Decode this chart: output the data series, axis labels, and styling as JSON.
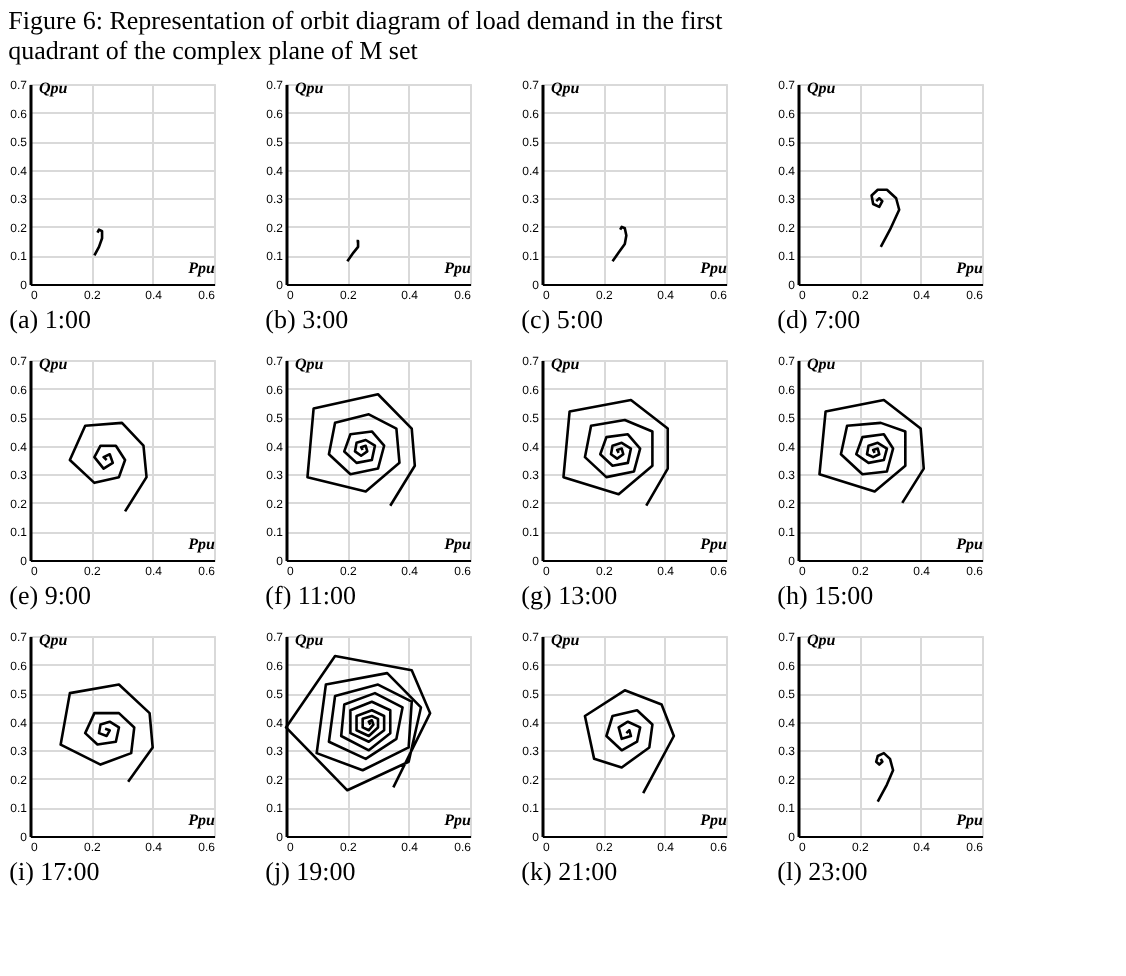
{
  "chart_data": [
    {
      "type": "line",
      "title": "(a) 1:00",
      "annotations": [
        "Figure 6: Representation of orbit diagram of load demand in the first quadrant of the complex plane of M set"
      ],
      "xlabel": "Ppu",
      "ylabel": "Qpu",
      "xlim": [
        0,
        0.6
      ],
      "ylim": [
        0,
        0.7
      ],
      "xticks": [
        0,
        0.2,
        0.4,
        0.6
      ],
      "yticks": [
        0,
        0.1,
        0.2,
        0.3,
        0.4,
        0.5,
        0.6,
        0.7
      ],
      "grid": true,
      "x": [
        0.21,
        0.225,
        0.235,
        0.235,
        0.225,
        0.22
      ],
      "series": [
        {
          "color": "#000000",
          "values": [
            0.1,
            0.13,
            0.16,
            0.185,
            0.19,
            0.18
          ]
        }
      ]
    },
    {
      "type": "line",
      "title": "(b) 3:00",
      "xlabel": "Ppu",
      "ylabel": "Qpu",
      "xlim": [
        0,
        0.6
      ],
      "ylim": [
        0,
        0.7
      ],
      "xticks": [
        0,
        0.2,
        0.4,
        0.6
      ],
      "yticks": [
        0,
        0.1,
        0.2,
        0.3,
        0.4,
        0.5,
        0.6,
        0.7
      ],
      "grid": true,
      "x": [
        0.2,
        0.22,
        0.235,
        0.235,
        0.23
      ],
      "series": [
        {
          "color": "#000000",
          "values": [
            0.08,
            0.11,
            0.13,
            0.15,
            0.15
          ]
        }
      ]
    },
    {
      "type": "line",
      "title": "(c) 5:00",
      "xlabel": "Ppu",
      "ylabel": "Qpu",
      "xlim": [
        0,
        0.6
      ],
      "ylim": [
        0,
        0.7
      ],
      "xticks": [
        0,
        0.2,
        0.4,
        0.6
      ],
      "yticks": [
        0,
        0.1,
        0.2,
        0.3,
        0.4,
        0.5,
        0.6,
        0.7
      ],
      "grid": true,
      "x": [
        0.23,
        0.25,
        0.27,
        0.275,
        0.27,
        0.26,
        0.255
      ],
      "series": [
        {
          "color": "#000000",
          "values": [
            0.08,
            0.11,
            0.14,
            0.17,
            0.195,
            0.2,
            0.19
          ]
        }
      ]
    },
    {
      "type": "line",
      "title": "(d) 7:00",
      "xlabel": "Ppu",
      "ylabel": "Qpu",
      "xlim": [
        0,
        0.6
      ],
      "ylim": [
        0,
        0.7
      ],
      "xticks": [
        0,
        0.2,
        0.4,
        0.6
      ],
      "yticks": [
        0,
        0.1,
        0.2,
        0.3,
        0.4,
        0.5,
        0.6,
        0.7
      ],
      "grid": true,
      "x": [
        0.27,
        0.3,
        0.33,
        0.32,
        0.29,
        0.26,
        0.24,
        0.245,
        0.265,
        0.275,
        0.265,
        0.255
      ],
      "series": [
        {
          "color": "#000000",
          "values": [
            0.13,
            0.19,
            0.26,
            0.3,
            0.33,
            0.33,
            0.31,
            0.28,
            0.27,
            0.29,
            0.3,
            0.29
          ]
        }
      ]
    },
    {
      "type": "line",
      "title": "(e) 9:00",
      "xlabel": "Ppu",
      "ylabel": "Qpu",
      "xlim": [
        0,
        0.6
      ],
      "ylim": [
        0,
        0.7
      ],
      "xticks": [
        0,
        0.2,
        0.4,
        0.6
      ],
      "yticks": [
        0,
        0.1,
        0.2,
        0.3,
        0.4,
        0.5,
        0.6,
        0.7
      ],
      "grid": true,
      "x": [
        0.31,
        0.38,
        0.37,
        0.3,
        0.18,
        0.13,
        0.21,
        0.29,
        0.31,
        0.28,
        0.23,
        0.21,
        0.24,
        0.27,
        0.26,
        0.24,
        0.25
      ],
      "series": [
        {
          "color": "#000000",
          "values": [
            0.17,
            0.29,
            0.4,
            0.48,
            0.47,
            0.35,
            0.27,
            0.29,
            0.35,
            0.4,
            0.4,
            0.36,
            0.32,
            0.34,
            0.37,
            0.36,
            0.35
          ]
        }
      ]
    },
    {
      "type": "line",
      "title": "(f) 11:00",
      "xlabel": "Ppu",
      "ylabel": "Qpu",
      "xlim": [
        0,
        0.6
      ],
      "ylim": [
        0,
        0.7
      ],
      "xticks": [
        0,
        0.2,
        0.4,
        0.6
      ],
      "yticks": [
        0,
        0.1,
        0.2,
        0.3,
        0.4,
        0.5,
        0.6,
        0.7
      ],
      "grid": true,
      "x": [
        0.34,
        0.42,
        0.41,
        0.3,
        0.09,
        0.07,
        0.26,
        0.37,
        0.36,
        0.27,
        0.16,
        0.14,
        0.21,
        0.3,
        0.32,
        0.28,
        0.21,
        0.19,
        0.23,
        0.28,
        0.29,
        0.26,
        0.23,
        0.225,
        0.245,
        0.265,
        0.26,
        0.245,
        0.25
      ],
      "series": [
        {
          "color": "#000000",
          "values": [
            0.19,
            0.33,
            0.46,
            0.58,
            0.53,
            0.29,
            0.24,
            0.34,
            0.46,
            0.51,
            0.48,
            0.37,
            0.3,
            0.32,
            0.4,
            0.45,
            0.44,
            0.38,
            0.34,
            0.35,
            0.4,
            0.42,
            0.41,
            0.38,
            0.365,
            0.38,
            0.4,
            0.395,
            0.385
          ]
        }
      ]
    },
    {
      "type": "line",
      "title": "(g) 13:00",
      "xlabel": "Ppu",
      "ylabel": "Qpu",
      "xlim": [
        0,
        0.6
      ],
      "ylim": [
        0,
        0.7
      ],
      "xticks": [
        0,
        0.2,
        0.4,
        0.6
      ],
      "yticks": [
        0,
        0.1,
        0.2,
        0.3,
        0.4,
        0.5,
        0.6,
        0.7
      ],
      "grid": true,
      "x": [
        0.34,
        0.41,
        0.41,
        0.29,
        0.09,
        0.07,
        0.25,
        0.36,
        0.36,
        0.27,
        0.16,
        0.14,
        0.21,
        0.3,
        0.32,
        0.28,
        0.21,
        0.19,
        0.23,
        0.28,
        0.29,
        0.26,
        0.23,
        0.225,
        0.245,
        0.265,
        0.26,
        0.245,
        0.25
      ],
      "series": [
        {
          "color": "#000000",
          "values": [
            0.19,
            0.32,
            0.46,
            0.56,
            0.52,
            0.29,
            0.23,
            0.33,
            0.45,
            0.49,
            0.47,
            0.36,
            0.29,
            0.31,
            0.39,
            0.44,
            0.43,
            0.37,
            0.33,
            0.34,
            0.39,
            0.41,
            0.4,
            0.37,
            0.355,
            0.37,
            0.39,
            0.385,
            0.375
          ]
        }
      ]
    },
    {
      "type": "line",
      "title": "(h) 15:00",
      "xlabel": "Ppu",
      "ylabel": "Qpu",
      "xlim": [
        0,
        0.6
      ],
      "ylim": [
        0,
        0.7
      ],
      "xticks": [
        0,
        0.2,
        0.4,
        0.6
      ],
      "yticks": [
        0,
        0.1,
        0.2,
        0.3,
        0.4,
        0.5,
        0.6,
        0.7
      ],
      "grid": true,
      "x": [
        0.34,
        0.41,
        0.4,
        0.28,
        0.09,
        0.07,
        0.25,
        0.35,
        0.35,
        0.27,
        0.16,
        0.14,
        0.21,
        0.29,
        0.31,
        0.28,
        0.21,
        0.19,
        0.23,
        0.28,
        0.29,
        0.26,
        0.23,
        0.225,
        0.245,
        0.265,
        0.26,
        0.245,
        0.25
      ],
      "series": [
        {
          "color": "#000000",
          "values": [
            0.2,
            0.32,
            0.46,
            0.56,
            0.52,
            0.3,
            0.24,
            0.33,
            0.45,
            0.48,
            0.47,
            0.37,
            0.3,
            0.31,
            0.39,
            0.44,
            0.43,
            0.37,
            0.34,
            0.35,
            0.39,
            0.41,
            0.4,
            0.37,
            0.36,
            0.37,
            0.39,
            0.385,
            0.375
          ]
        }
      ]
    },
    {
      "type": "line",
      "title": "(i) 17:00",
      "xlabel": "Ppu",
      "ylabel": "Qpu",
      "xlim": [
        0,
        0.6
      ],
      "ylim": [
        0,
        0.7
      ],
      "xticks": [
        0,
        0.2,
        0.4,
        0.6
      ],
      "yticks": [
        0,
        0.1,
        0.2,
        0.3,
        0.4,
        0.5,
        0.6,
        0.7
      ],
      "grid": true,
      "x": [
        0.32,
        0.4,
        0.39,
        0.29,
        0.13,
        0.1,
        0.23,
        0.33,
        0.34,
        0.29,
        0.21,
        0.18,
        0.22,
        0.28,
        0.29,
        0.26,
        0.23,
        0.225,
        0.25,
        0.26,
        0.245
      ],
      "series": [
        {
          "color": "#000000",
          "values": [
            0.19,
            0.31,
            0.43,
            0.53,
            0.5,
            0.32,
            0.25,
            0.29,
            0.38,
            0.43,
            0.43,
            0.36,
            0.32,
            0.33,
            0.38,
            0.4,
            0.39,
            0.36,
            0.35,
            0.37,
            0.375
          ]
        }
      ]
    },
    {
      "type": "line",
      "title": "(j) 19:00",
      "xlabel": "Ppu",
      "ylabel": "Qpu",
      "xlim": [
        0,
        0.6
      ],
      "ylim": [
        0,
        0.7
      ],
      "xticks": [
        0,
        0.2,
        0.4,
        0.6
      ],
      "yticks": [
        0,
        0.1,
        0.2,
        0.3,
        0.4,
        0.5,
        0.6,
        0.7
      ],
      "grid": true,
      "x": [
        0.35,
        0.47,
        0.41,
        0.16,
        0.0,
        0.2,
        0.4,
        0.44,
        0.33,
        0.13,
        0.1,
        0.25,
        0.4,
        0.41,
        0.3,
        0.16,
        0.14,
        0.26,
        0.36,
        0.38,
        0.29,
        0.19,
        0.18,
        0.27,
        0.34,
        0.34,
        0.28,
        0.21,
        0.21,
        0.27,
        0.32,
        0.32,
        0.28,
        0.23,
        0.23,
        0.27,
        0.3,
        0.3,
        0.28,
        0.25,
        0.25,
        0.27,
        0.285,
        0.28,
        0.27,
        0.275
      ],
      "series": [
        {
          "color": "#000000",
          "values": [
            0.17,
            0.43,
            0.58,
            0.63,
            0.38,
            0.16,
            0.26,
            0.45,
            0.57,
            0.53,
            0.29,
            0.23,
            0.31,
            0.47,
            0.53,
            0.49,
            0.33,
            0.27,
            0.34,
            0.45,
            0.5,
            0.46,
            0.35,
            0.3,
            0.36,
            0.44,
            0.47,
            0.44,
            0.36,
            0.33,
            0.37,
            0.42,
            0.44,
            0.42,
            0.37,
            0.35,
            0.38,
            0.41,
            0.42,
            0.41,
            0.38,
            0.37,
            0.39,
            0.405,
            0.4,
            0.39
          ]
        }
      ]
    },
    {
      "type": "line",
      "title": "(k) 21:00",
      "xlabel": "Ppu",
      "ylabel": "Qpu",
      "xlim": [
        0,
        0.6
      ],
      "ylim": [
        0,
        0.7
      ],
      "xticks": [
        0,
        0.2,
        0.4,
        0.6
      ],
      "yticks": [
        0,
        0.1,
        0.2,
        0.3,
        0.4,
        0.5,
        0.6,
        0.7
      ],
      "grid": true,
      "x": [
        0.33,
        0.43,
        0.39,
        0.27,
        0.14,
        0.17,
        0.26,
        0.35,
        0.36,
        0.31,
        0.23,
        0.21,
        0.26,
        0.31,
        0.32,
        0.28,
        0.25,
        0.26,
        0.29,
        0.285,
        0.275
      ],
      "series": [
        {
          "color": "#000000",
          "values": [
            0.15,
            0.35,
            0.46,
            0.51,
            0.42,
            0.27,
            0.24,
            0.31,
            0.39,
            0.44,
            0.42,
            0.35,
            0.3,
            0.33,
            0.38,
            0.4,
            0.38,
            0.34,
            0.35,
            0.37,
            0.36
          ]
        }
      ]
    },
    {
      "type": "line",
      "title": "(l) 23:00",
      "xlabel": "Ppu",
      "ylabel": "Qpu",
      "xlim": [
        0,
        0.6
      ],
      "ylim": [
        0,
        0.7
      ],
      "xticks": [
        0,
        0.2,
        0.4,
        0.6
      ],
      "yticks": [
        0,
        0.1,
        0.2,
        0.3,
        0.4,
        0.5,
        0.6,
        0.7
      ],
      "grid": true,
      "x": [
        0.26,
        0.29,
        0.31,
        0.3,
        0.28,
        0.26,
        0.255,
        0.265,
        0.275,
        0.27
      ],
      "series": [
        {
          "color": "#000000",
          "values": [
            0.12,
            0.18,
            0.23,
            0.27,
            0.29,
            0.28,
            0.26,
            0.25,
            0.26,
            0.27
          ]
        }
      ]
    }
  ]
}
